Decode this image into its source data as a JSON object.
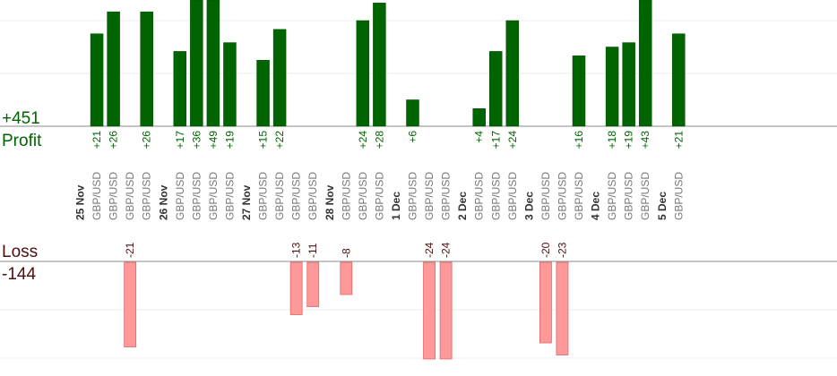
{
  "chart_data": {
    "type": "bar",
    "profit_label": "Profit",
    "profit_total": "+451",
    "loss_label": "Loss",
    "loss_total": "-144",
    "colors": {
      "profit": "#006400",
      "loss": "#ff9999",
      "profit_text": "#006400",
      "loss_text": "#4a1010"
    },
    "ylim_profit": [
      0,
      24
    ],
    "ylim_loss": [
      0,
      24
    ],
    "categories": [
      {
        "kind": "date",
        "label": "25 Nov"
      },
      {
        "kind": "trade",
        "label": "GBP/USD",
        "value": 21
      },
      {
        "kind": "trade",
        "label": "GBP/USD",
        "value": 26
      },
      {
        "kind": "trade",
        "label": "GBP/USD",
        "value": -21
      },
      {
        "kind": "trade",
        "label": "GBP/USD",
        "value": 26
      },
      {
        "kind": "date",
        "label": "26 Nov"
      },
      {
        "kind": "trade",
        "label": "GBP/USD",
        "value": 17
      },
      {
        "kind": "trade",
        "label": "GBP/USD",
        "value": 36
      },
      {
        "kind": "trade",
        "label": "GBP/USD",
        "value": 49
      },
      {
        "kind": "trade",
        "label": "GBP/USD",
        "value": 19
      },
      {
        "kind": "date",
        "label": "27 Nov"
      },
      {
        "kind": "trade",
        "label": "GBP/USD",
        "value": 15
      },
      {
        "kind": "trade",
        "label": "GBP/USD",
        "value": 22
      },
      {
        "kind": "trade",
        "label": "GBP/USD",
        "value": -13
      },
      {
        "kind": "trade",
        "label": "GBP/USD",
        "value": -11
      },
      {
        "kind": "date",
        "label": "28 Nov"
      },
      {
        "kind": "trade",
        "label": "GBP/USD",
        "value": -8
      },
      {
        "kind": "trade",
        "label": "GBP/USD",
        "value": 24
      },
      {
        "kind": "trade",
        "label": "GBP/USD",
        "value": 28
      },
      {
        "kind": "date",
        "label": "1 Dec"
      },
      {
        "kind": "trade",
        "label": "GBP/USD",
        "value": 6
      },
      {
        "kind": "trade",
        "label": "GBP/USD",
        "value": -24
      },
      {
        "kind": "trade",
        "label": "GBP/USD",
        "value": -24
      },
      {
        "kind": "date",
        "label": "2 Dec"
      },
      {
        "kind": "trade",
        "label": "GBP/USD",
        "value": 4
      },
      {
        "kind": "trade",
        "label": "GBP/USD",
        "value": 17
      },
      {
        "kind": "trade",
        "label": "GBP/USD",
        "value": 24
      },
      {
        "kind": "date",
        "label": "3 Dec"
      },
      {
        "kind": "trade",
        "label": "GBP/USD",
        "value": -20
      },
      {
        "kind": "trade",
        "label": "GBP/USD",
        "value": -23
      },
      {
        "kind": "trade",
        "label": "GBP/USD",
        "value": 16
      },
      {
        "kind": "date",
        "label": "4 Dec"
      },
      {
        "kind": "trade",
        "label": "GBP/USD",
        "value": 18
      },
      {
        "kind": "trade",
        "label": "GBP/USD",
        "value": 19
      },
      {
        "kind": "trade",
        "label": "GBP/USD",
        "value": 43
      },
      {
        "kind": "date",
        "label": "5 Dec"
      },
      {
        "kind": "trade",
        "label": "GBP/USD",
        "value": 21
      }
    ]
  }
}
